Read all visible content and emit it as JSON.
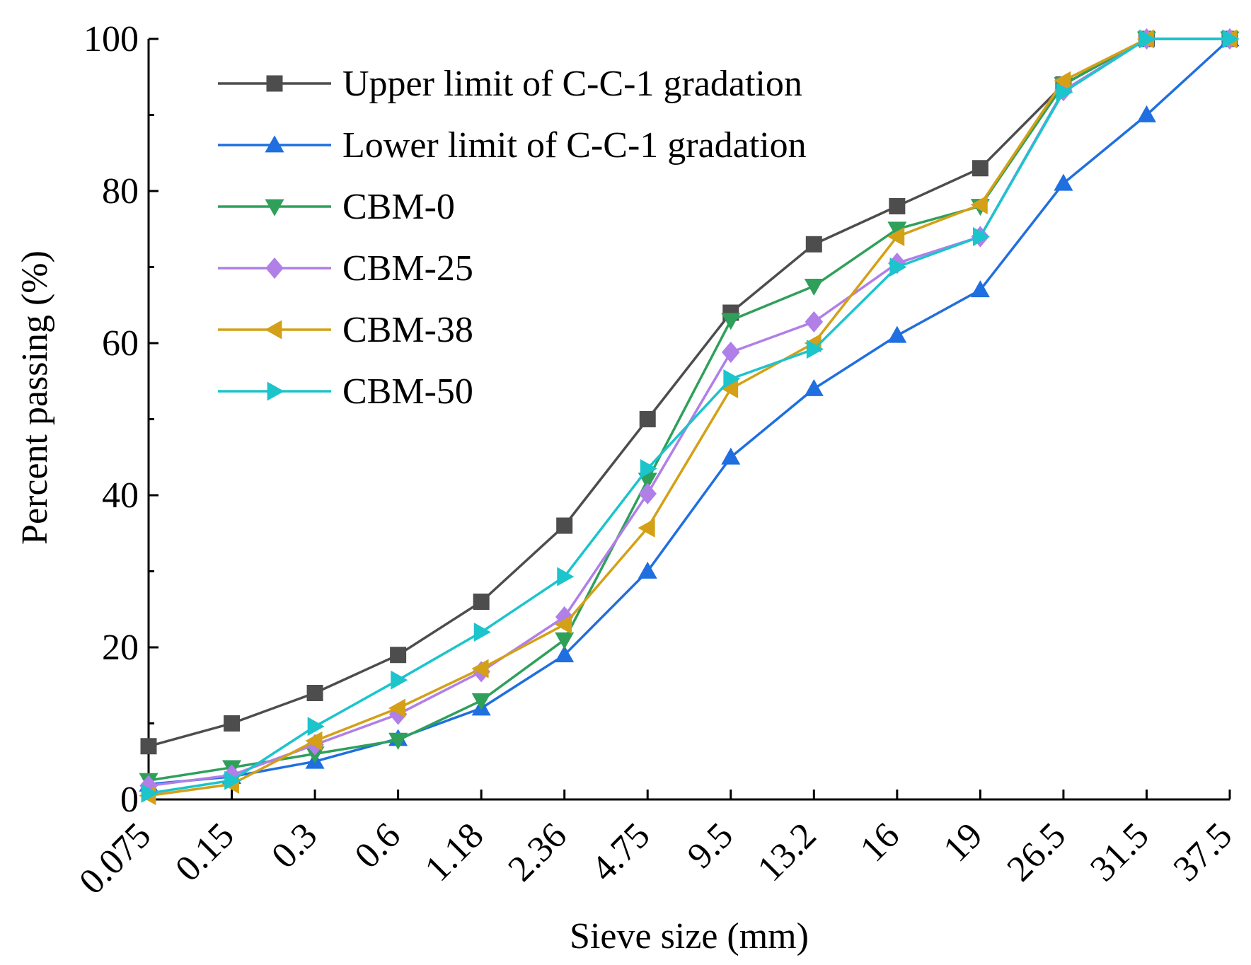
{
  "chart_data": {
    "type": "line",
    "title": "",
    "xlabel": "Sieve size (mm)",
    "ylabel": "Percent passing (%)",
    "categories": [
      "0.075",
      "0.15",
      "0.3",
      "0.6",
      "1.18",
      "2.36",
      "4.75",
      "9.5",
      "13.2",
      "16",
      "19",
      "26.5",
      "31.5",
      "37.5"
    ],
    "ylim": [
      0,
      100
    ],
    "yticks": [
      "0",
      "20",
      "40",
      "60",
      "80",
      "100"
    ],
    "grid": false,
    "legend_position": "top-left",
    "series": [
      {
        "name": "Upper limit of C-C-1 gradation",
        "color": "#4d4d4d",
        "marker": "square",
        "values": [
          7,
          10,
          14,
          19,
          26,
          36,
          50,
          64,
          73,
          78,
          83,
          94,
          100,
          100
        ]
      },
      {
        "name": "Lower limit of C-C-1 gradation",
        "color": "#1f6fe0",
        "marker": "triangle-up",
        "values": [
          2,
          3,
          5,
          8,
          12,
          19,
          30,
          45,
          54,
          61,
          67,
          81,
          90,
          100
        ]
      },
      {
        "name": "CBM-0",
        "color": "#2ea05a",
        "marker": "triangle-down",
        "values": [
          2.5,
          4.2,
          6,
          7.8,
          13,
          21,
          42,
          63,
          67.5,
          75,
          78,
          94,
          100,
          100
        ]
      },
      {
        "name": "CBM-25",
        "color": "#b07fe8",
        "marker": "diamond",
        "values": [
          1.8,
          3.2,
          7.2,
          11.2,
          16.8,
          24,
          40.2,
          58.8,
          62.8,
          70.5,
          74,
          93.2,
          100,
          100
        ]
      },
      {
        "name": "CBM-38",
        "color": "#d4a017",
        "marker": "triangle-left",
        "values": [
          0.5,
          2,
          7.7,
          12,
          17.2,
          23,
          35.7,
          54,
          60,
          74,
          78.2,
          94.5,
          100,
          100
        ]
      },
      {
        "name": "CBM-50",
        "color": "#1cc4cc",
        "marker": "triangle-right",
        "values": [
          0.8,
          2.5,
          9.6,
          15.7,
          22,
          29.3,
          43.5,
          55.3,
          59.2,
          70,
          74,
          93,
          100,
          100
        ]
      }
    ]
  }
}
